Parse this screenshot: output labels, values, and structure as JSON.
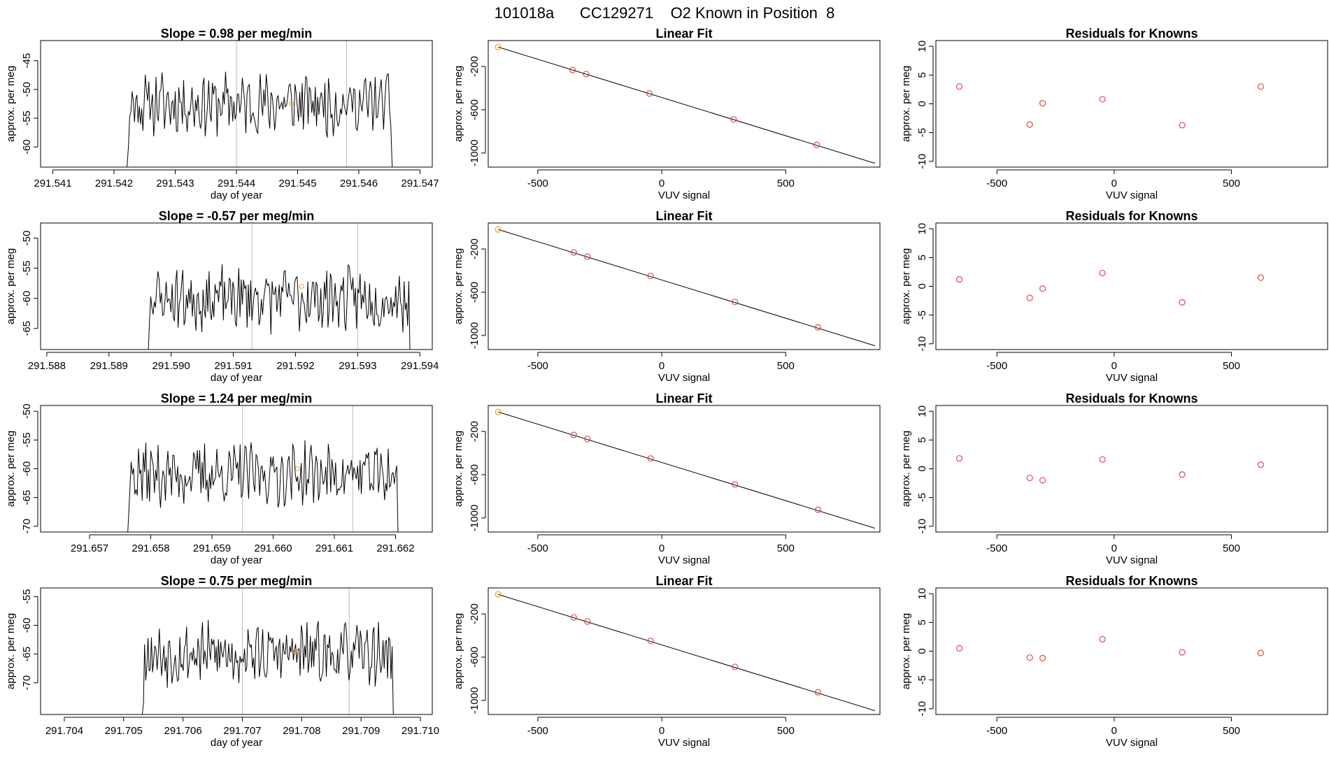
{
  "figure_title": "101018a      CC129271    O2 Known in Position  8",
  "colors": {
    "trace": "#000000",
    "fit_line": "#000000",
    "known": "#d94c4c",
    "highlight": "#f0a030",
    "frame": "#000000",
    "vline": "#bbbbbb"
  },
  "chart_data": [
    {
      "type": "line",
      "row": 1,
      "panel": "timeseries",
      "title": "Slope =  0.98  per meg/min",
      "xlabel": "day of year",
      "ylabel": "approx. per meg",
      "xlim": [
        291.5408,
        291.5472
      ],
      "ylim": [
        -63.5,
        -41.5
      ],
      "xticks": [
        "291.541",
        "291.542",
        "291.543",
        "291.544",
        "291.545",
        "291.546",
        "291.547"
      ],
      "yticks": [
        "-45",
        "-50",
        "-55",
        "-60"
      ],
      "vlines": [
        291.544,
        291.5458
      ],
      "series_start": 291.5421,
      "series_end": 291.5466,
      "base_level": -52.5,
      "seed": 11,
      "highlight_point": {
        "x": 291.5449,
        "y": -52.5
      }
    },
    {
      "type": "scatter",
      "row": 1,
      "panel": "fit",
      "title": "Linear Fit",
      "xlabel": "VUV signal",
      "ylabel": "approx. per meg",
      "xlim": [
        -700,
        880
      ],
      "ylim": [
        -1130,
        40
      ],
      "xticks": [
        -500,
        0,
        500
      ],
      "yticks": [
        -200,
        -600,
        -1000
      ],
      "line": [
        {
          "x": -660,
          "y": -20
        },
        {
          "x": 860,
          "y": -1095
        }
      ],
      "x": [
        -660,
        -360,
        -305,
        -50,
        290,
        625
      ],
      "y": [
        -20,
        -232,
        -270,
        -450,
        -690,
        -925
      ],
      "highlight_index": 0
    },
    {
      "type": "scatter",
      "row": 1,
      "panel": "residuals",
      "title": "Residuals for Knowns",
      "xlabel": "VUV signal",
      "ylabel": "approx. per meg",
      "xlim": [
        -760,
        910
      ],
      "ylim": [
        -11,
        11
      ],
      "xticks": [
        -500,
        0,
        500
      ],
      "yticks": [
        10,
        5,
        0,
        -5,
        -10
      ],
      "x": [
        -660,
        -360,
        -305,
        -50,
        290,
        625
      ],
      "y": [
        3.0,
        -3.6,
        0.1,
        0.8,
        -3.7,
        3.0
      ]
    },
    {
      "type": "line",
      "row": 2,
      "panel": "timeseries",
      "title": "Slope =  -0.57  per meg/min",
      "xlabel": "day of year",
      "ylabel": "approx. per meg",
      "xlim": [
        291.5879,
        291.5942
      ],
      "ylim": [
        -68.5,
        -47.5
      ],
      "xticks": [
        "291.588",
        "291.589",
        "291.590",
        "291.591",
        "291.592",
        "291.593",
        "291.594"
      ],
      "yticks": [
        "-50",
        "-55",
        "-60",
        "-65"
      ],
      "vlines": [
        291.5913,
        291.593
      ],
      "series_start": 291.5895,
      "series_end": 291.5939,
      "base_level": -60.0,
      "seed": 23,
      "highlight_point": {
        "x": 291.5921,
        "y": -58.0
      }
    },
    {
      "type": "scatter",
      "row": 2,
      "panel": "fit",
      "title": "Linear Fit",
      "xlabel": "VUV signal",
      "ylabel": "approx. per meg",
      "xlim": [
        -700,
        880
      ],
      "ylim": [
        -1130,
        40
      ],
      "xticks": [
        -500,
        0,
        500
      ],
      "yticks": [
        -200,
        -600,
        -1000
      ],
      "line": [
        {
          "x": -660,
          "y": -20
        },
        {
          "x": 860,
          "y": -1095
        }
      ],
      "x": [
        -660,
        -355,
        -300,
        -45,
        295,
        630
      ],
      "y": [
        -20,
        -232,
        -270,
        -450,
        -690,
        -925
      ],
      "highlight_index": 0
    },
    {
      "type": "scatter",
      "row": 2,
      "panel": "residuals",
      "title": "Residuals for Knowns",
      "xlabel": "VUV signal",
      "ylabel": "approx. per meg",
      "xlim": [
        -760,
        910
      ],
      "ylim": [
        -11,
        11
      ],
      "xticks": [
        -500,
        0,
        500
      ],
      "yticks": [
        10,
        5,
        0,
        -5,
        -10
      ],
      "x": [
        -660,
        -360,
        -305,
        -50,
        290,
        625
      ],
      "y": [
        1.2,
        -2.0,
        -0.4,
        2.3,
        -2.8,
        1.5
      ]
    },
    {
      "type": "line",
      "row": 3,
      "panel": "timeseries",
      "title": "Slope =  1.24  per meg/min",
      "xlabel": "day of year",
      "ylabel": "approx. per meg",
      "xlim": [
        291.6562,
        291.6626
      ],
      "ylim": [
        -71,
        -49
      ],
      "xticks": [
        "291.657",
        "291.658",
        "291.659",
        "291.660",
        "291.661",
        "291.662"
      ],
      "yticks": [
        "-50",
        "-55",
        "-60",
        "-65",
        "-70"
      ],
      "vlines": [
        291.6595,
        291.6613
      ],
      "series_start": 291.6575,
      "series_end": 291.6621,
      "base_level": -61.0,
      "seed": 37,
      "highlight_point": {
        "x": 291.6604,
        "y": -60.0
      }
    },
    {
      "type": "scatter",
      "row": 3,
      "panel": "fit",
      "title": "Linear Fit",
      "xlabel": "VUV signal",
      "ylabel": "approx. per meg",
      "xlim": [
        -700,
        880
      ],
      "ylim": [
        -1130,
        40
      ],
      "xticks": [
        -500,
        0,
        500
      ],
      "yticks": [
        -200,
        -600,
        -1000
      ],
      "line": [
        {
          "x": -660,
          "y": -20
        },
        {
          "x": 860,
          "y": -1095
        }
      ],
      "x": [
        -660,
        -355,
        -300,
        -45,
        295,
        630
      ],
      "y": [
        -20,
        -232,
        -270,
        -450,
        -690,
        -925
      ],
      "highlight_index": 0
    },
    {
      "type": "scatter",
      "row": 3,
      "panel": "residuals",
      "title": "Residuals for Knowns",
      "xlabel": "VUV signal",
      "ylabel": "approx. per meg",
      "xlim": [
        -760,
        910
      ],
      "ylim": [
        -11,
        11
      ],
      "xticks": [
        -500,
        0,
        500
      ],
      "yticks": [
        10,
        5,
        0,
        -5,
        -10
      ],
      "x": [
        -660,
        -360,
        -305,
        -50,
        290,
        625
      ],
      "y": [
        1.8,
        -1.6,
        -2.0,
        1.6,
        -1.0,
        0.7
      ]
    },
    {
      "type": "line",
      "row": 4,
      "panel": "timeseries",
      "title": "Slope =  0.75  per meg/min",
      "xlabel": "day of year",
      "ylabel": "approx. per meg",
      "xlim": [
        291.7036,
        291.7102
      ],
      "ylim": [
        -75.5,
        -53.5
      ],
      "xticks": [
        "291.704",
        "291.705",
        "291.706",
        "291.707",
        "291.708",
        "291.709",
        "291.710"
      ],
      "yticks": [
        "-55",
        "-60",
        "-65",
        "-70"
      ],
      "vlines": [
        291.707,
        291.7088
      ],
      "series_start": 291.7052,
      "series_end": 291.7096,
      "base_level": -65.0,
      "seed": 53,
      "highlight_point": {
        "x": 291.7079,
        "y": -64.5
      }
    },
    {
      "type": "scatter",
      "row": 4,
      "panel": "fit",
      "title": "Linear Fit",
      "xlabel": "VUV signal",
      "ylabel": "approx. per meg",
      "xlim": [
        -700,
        880
      ],
      "ylim": [
        -1130,
        40
      ],
      "xticks": [
        -500,
        0,
        500
      ],
      "yticks": [
        -200,
        -600,
        -1000
      ],
      "line": [
        {
          "x": -660,
          "y": -20
        },
        {
          "x": 860,
          "y": -1095
        }
      ],
      "x": [
        -660,
        -355,
        -300,
        -45,
        295,
        630
      ],
      "y": [
        -20,
        -232,
        -270,
        -450,
        -690,
        -925
      ],
      "highlight_index": 0
    },
    {
      "type": "scatter",
      "row": 4,
      "panel": "residuals",
      "title": "Residuals for Knowns",
      "xlabel": "VUV signal",
      "ylabel": "approx. per meg",
      "xlim": [
        -760,
        910
      ],
      "ylim": [
        -11,
        11
      ],
      "xticks": [
        -500,
        0,
        500
      ],
      "yticks": [
        10,
        5,
        0,
        -5,
        -10
      ],
      "x": [
        -660,
        -360,
        -305,
        -50,
        290,
        625
      ],
      "y": [
        0.5,
        -1.1,
        -1.2,
        2.1,
        -0.2,
        -0.3
      ]
    }
  ]
}
